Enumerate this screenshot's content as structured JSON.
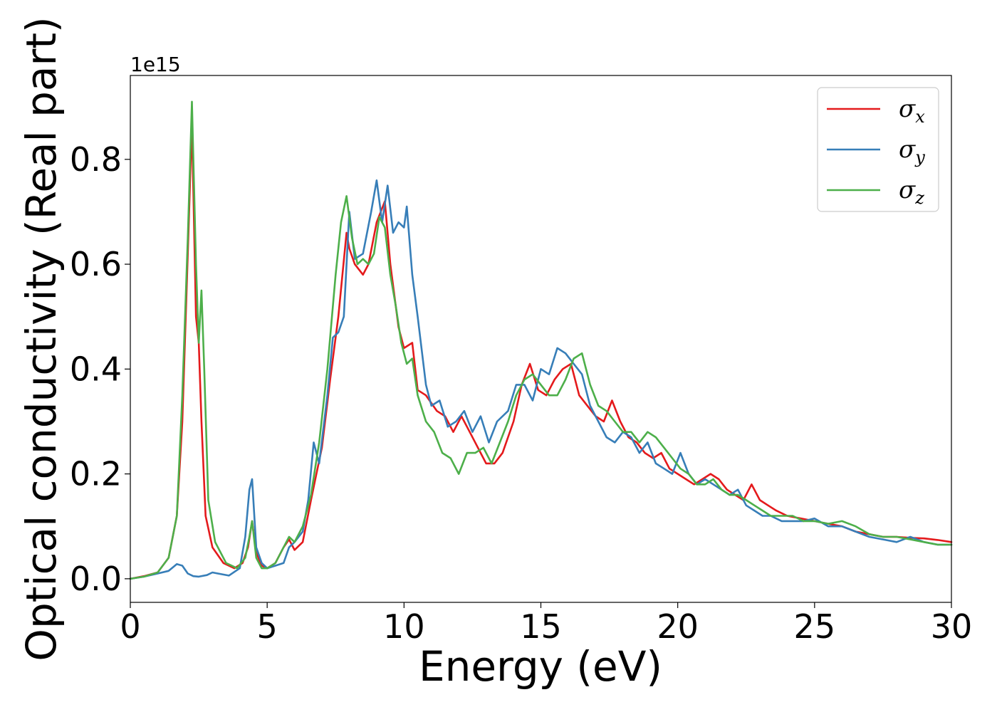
{
  "chart_data": {
    "type": "line",
    "title": "",
    "xlabel": "Energy (eV)",
    "ylabel": "Optical conductivity (Real part)",
    "y_offset_label": "1e15",
    "y_multiplier": 1000000000000000.0,
    "xlim": [
      0,
      30
    ],
    "ylim": [
      -0.045,
      0.96
    ],
    "x_ticks": [
      0,
      5,
      10,
      15,
      20,
      25,
      30
    ],
    "y_ticks": [
      0.0,
      0.2,
      0.4,
      0.6,
      0.8
    ],
    "y_tick_labels": [
      "0.0",
      "0.2",
      "0.4",
      "0.6",
      "0.8"
    ],
    "grid": false,
    "legend_position": "top-right",
    "series": [
      {
        "name": "σx",
        "legend_symbol": "σ",
        "legend_subscript": "x",
        "color": "#e41a1c",
        "x": [
          0,
          0.5,
          1.0,
          1.4,
          1.7,
          1.9,
          2.1,
          2.25,
          2.4,
          2.5,
          2.6,
          2.75,
          3.0,
          3.4,
          3.8,
          4.1,
          4.3,
          4.45,
          4.6,
          4.8,
          5.0,
          5.3,
          5.6,
          5.8,
          6.0,
          6.3,
          6.6,
          6.8,
          7.0,
          7.3,
          7.6,
          7.9,
          8.0,
          8.2,
          8.5,
          8.7,
          9.0,
          9.3,
          9.5,
          9.8,
          10.0,
          10.3,
          10.5,
          10.8,
          11.2,
          11.5,
          11.8,
          12.1,
          12.4,
          12.7,
          13.0,
          13.3,
          13.6,
          14.0,
          14.3,
          14.6,
          14.9,
          15.2,
          15.5,
          15.8,
          16.1,
          16.4,
          16.7,
          17.0,
          17.3,
          17.6,
          17.9,
          18.2,
          18.5,
          18.8,
          19.1,
          19.4,
          19.7,
          20.0,
          20.3,
          20.6,
          20.9,
          21.2,
          21.5,
          21.8,
          22.1,
          22.4,
          22.7,
          23.0,
          23.3,
          23.6,
          24.0,
          24.5,
          25.0,
          25.5,
          26.0,
          26.5,
          27.0,
          27.5,
          28.0,
          28.5,
          29.0,
          29.5,
          30.0
        ],
        "y": [
          0.0,
          0.005,
          0.012,
          0.04,
          0.12,
          0.3,
          0.62,
          0.87,
          0.5,
          0.45,
          0.3,
          0.12,
          0.06,
          0.03,
          0.02,
          0.03,
          0.06,
          0.11,
          0.05,
          0.025,
          0.02,
          0.03,
          0.06,
          0.075,
          0.055,
          0.07,
          0.15,
          0.2,
          0.25,
          0.38,
          0.5,
          0.66,
          0.63,
          0.6,
          0.58,
          0.6,
          0.68,
          0.72,
          0.6,
          0.48,
          0.44,
          0.45,
          0.36,
          0.35,
          0.32,
          0.31,
          0.28,
          0.31,
          0.28,
          0.25,
          0.22,
          0.22,
          0.24,
          0.3,
          0.37,
          0.41,
          0.36,
          0.35,
          0.38,
          0.4,
          0.41,
          0.35,
          0.33,
          0.31,
          0.3,
          0.34,
          0.3,
          0.27,
          0.26,
          0.24,
          0.23,
          0.24,
          0.21,
          0.2,
          0.19,
          0.18,
          0.19,
          0.2,
          0.19,
          0.17,
          0.16,
          0.15,
          0.18,
          0.15,
          0.14,
          0.13,
          0.12,
          0.115,
          0.11,
          0.105,
          0.1,
          0.09,
          0.085,
          0.08,
          0.08,
          0.078,
          0.077,
          0.074,
          0.07
        ]
      },
      {
        "name": "σy",
        "legend_symbol": "σ",
        "legend_subscript": "y",
        "color": "#377eb8",
        "x": [
          0,
          0.5,
          1.0,
          1.4,
          1.7,
          1.9,
          2.1,
          2.3,
          2.5,
          2.8,
          3.0,
          3.2,
          3.6,
          4.0,
          4.2,
          4.35,
          4.45,
          4.6,
          4.8,
          5.0,
          5.3,
          5.6,
          5.8,
          6.0,
          6.3,
          6.5,
          6.7,
          6.9,
          7.2,
          7.4,
          7.6,
          7.8,
          8.0,
          8.2,
          8.5,
          8.8,
          9.0,
          9.2,
          9.4,
          9.6,
          9.8,
          10.0,
          10.1,
          10.3,
          10.5,
          10.8,
          11.0,
          11.3,
          11.6,
          11.9,
          12.2,
          12.5,
          12.8,
          13.1,
          13.4,
          13.8,
          14.1,
          14.4,
          14.7,
          15.0,
          15.3,
          15.6,
          15.9,
          16.2,
          16.5,
          16.8,
          17.1,
          17.4,
          17.7,
          18.0,
          18.3,
          18.6,
          18.9,
          19.2,
          19.5,
          19.8,
          20.1,
          20.4,
          20.7,
          21.0,
          21.3,
          21.6,
          21.9,
          22.2,
          22.5,
          22.8,
          23.1,
          23.4,
          23.8,
          24.2,
          24.6,
          25.0,
          25.5,
          26.0,
          26.5,
          27.0,
          27.5,
          28.0,
          28.5,
          29.0,
          29.5,
          30.0
        ],
        "y": [
          0.0,
          0.004,
          0.01,
          0.015,
          0.028,
          0.025,
          0.01,
          0.005,
          0.004,
          0.007,
          0.012,
          0.01,
          0.006,
          0.02,
          0.08,
          0.17,
          0.19,
          0.06,
          0.03,
          0.02,
          0.025,
          0.03,
          0.06,
          0.07,
          0.09,
          0.15,
          0.26,
          0.22,
          0.35,
          0.46,
          0.47,
          0.5,
          0.7,
          0.61,
          0.62,
          0.7,
          0.76,
          0.68,
          0.75,
          0.66,
          0.68,
          0.67,
          0.71,
          0.58,
          0.5,
          0.37,
          0.33,
          0.34,
          0.29,
          0.3,
          0.32,
          0.28,
          0.31,
          0.26,
          0.3,
          0.32,
          0.37,
          0.37,
          0.34,
          0.4,
          0.39,
          0.44,
          0.43,
          0.41,
          0.39,
          0.33,
          0.3,
          0.27,
          0.26,
          0.28,
          0.27,
          0.24,
          0.26,
          0.22,
          0.21,
          0.2,
          0.24,
          0.2,
          0.18,
          0.19,
          0.18,
          0.17,
          0.16,
          0.17,
          0.14,
          0.13,
          0.12,
          0.12,
          0.11,
          0.11,
          0.11,
          0.115,
          0.1,
          0.1,
          0.09,
          0.08,
          0.075,
          0.07,
          0.08,
          0.07,
          0.065,
          0.065
        ]
      },
      {
        "name": "σz",
        "legend_symbol": "σ",
        "legend_subscript": "z",
        "color": "#4daf4a",
        "x": [
          0,
          0.5,
          1.0,
          1.4,
          1.7,
          1.9,
          2.1,
          2.25,
          2.4,
          2.5,
          2.6,
          2.7,
          2.85,
          3.1,
          3.5,
          3.9,
          4.2,
          4.35,
          4.45,
          4.6,
          4.8,
          5.0,
          5.3,
          5.6,
          5.8,
          6.0,
          6.3,
          6.6,
          6.9,
          7.2,
          7.5,
          7.7,
          7.9,
          8.1,
          8.3,
          8.5,
          8.7,
          8.9,
          9.1,
          9.3,
          9.5,
          9.7,
          9.9,
          10.1,
          10.3,
          10.5,
          10.8,
          11.1,
          11.4,
          11.7,
          12.0,
          12.3,
          12.6,
          12.9,
          13.2,
          13.5,
          13.8,
          14.1,
          14.4,
          14.7,
          15.0,
          15.3,
          15.6,
          15.9,
          16.2,
          16.5,
          16.8,
          17.1,
          17.4,
          17.7,
          18.0,
          18.3,
          18.6,
          18.9,
          19.2,
          19.5,
          19.8,
          20.1,
          20.4,
          20.7,
          21.0,
          21.3,
          21.6,
          21.9,
          22.2,
          22.5,
          22.8,
          23.1,
          23.4,
          23.8,
          24.2,
          24.6,
          25.0,
          25.5,
          26.0,
          26.5,
          27.0,
          27.5,
          28.0,
          28.5,
          29.0,
          29.5,
          30.0
        ],
        "y": [
          0.0,
          0.004,
          0.012,
          0.04,
          0.12,
          0.35,
          0.65,
          0.91,
          0.6,
          0.45,
          0.55,
          0.4,
          0.15,
          0.07,
          0.03,
          0.02,
          0.04,
          0.08,
          0.11,
          0.04,
          0.02,
          0.02,
          0.03,
          0.06,
          0.08,
          0.07,
          0.1,
          0.16,
          0.26,
          0.4,
          0.58,
          0.68,
          0.73,
          0.65,
          0.6,
          0.61,
          0.6,
          0.62,
          0.69,
          0.67,
          0.58,
          0.52,
          0.45,
          0.41,
          0.42,
          0.35,
          0.3,
          0.28,
          0.24,
          0.23,
          0.2,
          0.24,
          0.24,
          0.25,
          0.22,
          0.26,
          0.3,
          0.35,
          0.38,
          0.39,
          0.37,
          0.35,
          0.35,
          0.38,
          0.42,
          0.43,
          0.37,
          0.33,
          0.32,
          0.3,
          0.28,
          0.28,
          0.26,
          0.28,
          0.27,
          0.25,
          0.23,
          0.21,
          0.2,
          0.18,
          0.18,
          0.19,
          0.17,
          0.16,
          0.16,
          0.15,
          0.14,
          0.13,
          0.12,
          0.12,
          0.12,
          0.11,
          0.11,
          0.105,
          0.11,
          0.1,
          0.085,
          0.08,
          0.08,
          0.075,
          0.07,
          0.065,
          0.065
        ]
      }
    ]
  }
}
